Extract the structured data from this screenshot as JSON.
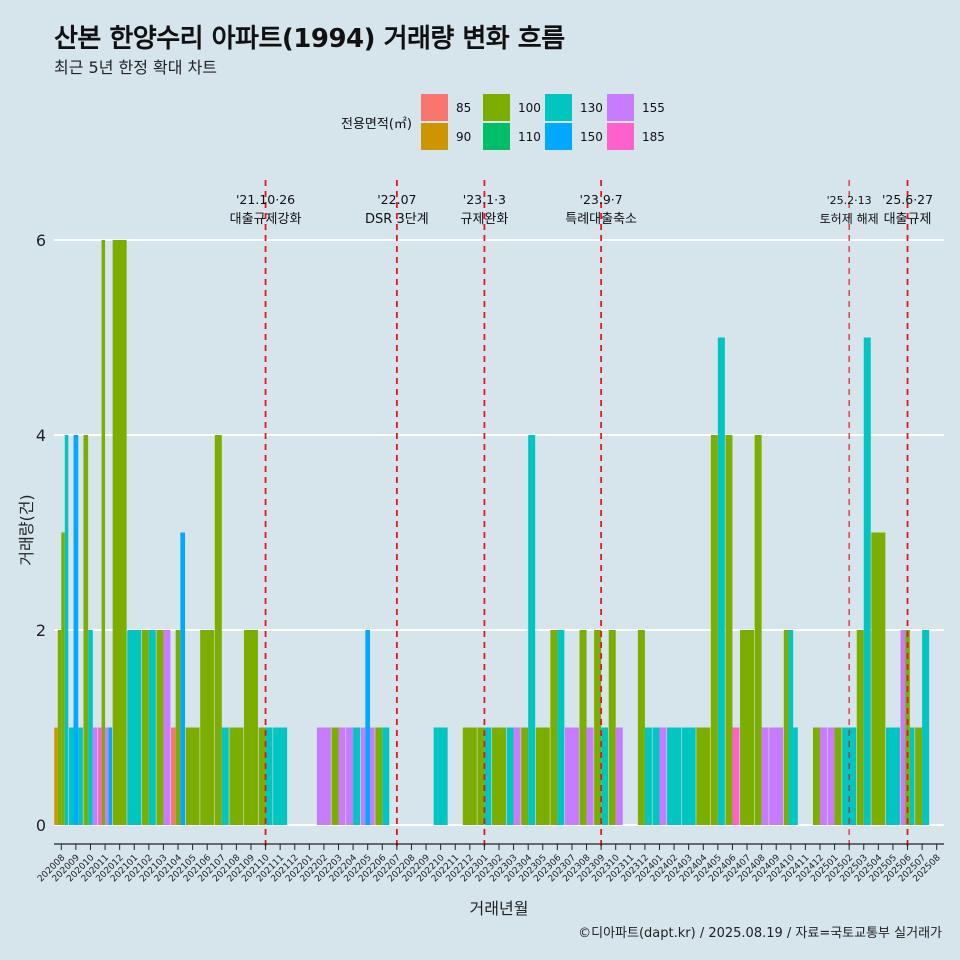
{
  "title": "산본 한양수리 아파트(1994) 거래량 변화 흐름",
  "subtitle": "최근 5년 한정 확대 차트",
  "caption": "©디아파트(dapt.kr) / 2025.08.19 / 자료=국토교통부 실거래가",
  "colors": {
    "background": "#d6e4ec",
    "grid": "#ffffff",
    "vline": "#e8141c",
    "85": "#f8766d",
    "90": "#cd9600",
    "100": "#7cae00",
    "110": "#00be67",
    "130": "#00c5c0",
    "150": "#00a9ff",
    "155": "#c77cff",
    "185": "#ff61cc"
  },
  "chart_data": {
    "type": "bar",
    "xlabel": "거래년월",
    "ylabel": "거래량(건)",
    "ylim": [
      0,
      6.4
    ],
    "yticks": [
      0,
      2,
      4,
      6
    ],
    "grid": true,
    "legend": {
      "title": "전용면적(㎡)",
      "position": "top",
      "keys": [
        "85",
        "90",
        "100",
        "110",
        "130",
        "150",
        "155",
        "185"
      ]
    },
    "categories": [
      "202008",
      "202009",
      "202010",
      "202011",
      "202012",
      "202101",
      "202102",
      "202103",
      "202104",
      "202105",
      "202106",
      "202107",
      "202108",
      "202109",
      "202110",
      "202111",
      "202112",
      "202201",
      "202202",
      "202203",
      "202204",
      "202205",
      "202206",
      "202207",
      "202208",
      "202209",
      "202210",
      "202211",
      "202212",
      "202301",
      "202302",
      "202303",
      "202304",
      "202305",
      "202306",
      "202307",
      "202308",
      "202309",
      "202310",
      "202311",
      "202312",
      "202401",
      "202402",
      "202403",
      "202404",
      "202405",
      "202406",
      "202407",
      "202408",
      "202409",
      "202410",
      "202411",
      "202412",
      "202501",
      "202502",
      "202503",
      "202504",
      "202505",
      "202506",
      "202507",
      "202508"
    ],
    "groups": [
      {
        "x": "202008",
        "bars": [
          {
            "area": "90",
            "value": 1
          },
          {
            "area": "100",
            "value": 2
          },
          {
            "area": "100",
            "value": 3
          },
          {
            "area": "130",
            "value": 4
          }
        ]
      },
      {
        "x": "202009",
        "bars": [
          {
            "area": "130",
            "value": 1
          },
          {
            "area": "150",
            "value": 4
          },
          {
            "area": "130",
            "value": 1
          }
        ]
      },
      {
        "x": "202010",
        "bars": [
          {
            "area": "100",
            "value": 4
          },
          {
            "area": "130",
            "value": 2
          },
          {
            "area": "155",
            "value": 1
          }
        ]
      },
      {
        "x": "202011",
        "bars": [
          {
            "area": "185",
            "value": 1
          },
          {
            "area": "100",
            "value": 6
          },
          {
            "area": "155",
            "value": 1
          },
          {
            "area": "150",
            "value": 1
          }
        ]
      },
      {
        "x": "202012",
        "bars": [
          {
            "area": "100",
            "value": 6
          }
        ]
      },
      {
        "x": "202101",
        "bars": [
          {
            "area": "130",
            "value": 2
          }
        ]
      },
      {
        "x": "202102",
        "bars": [
          {
            "area": "100",
            "value": 2
          },
          {
            "area": "130",
            "value": 2
          }
        ]
      },
      {
        "x": "202103",
        "bars": [
          {
            "area": "100",
            "value": 2
          },
          {
            "area": "155",
            "value": 2
          }
        ]
      },
      {
        "x": "202104",
        "bars": [
          {
            "area": "85",
            "value": 1
          },
          {
            "area": "100",
            "value": 2
          },
          {
            "area": "150",
            "value": 3
          }
        ]
      },
      {
        "x": "202105",
        "bars": [
          {
            "area": "100",
            "value": 1
          }
        ]
      },
      {
        "x": "202106",
        "bars": [
          {
            "area": "100",
            "value": 2
          }
        ]
      },
      {
        "x": "202107",
        "bars": [
          {
            "area": "100",
            "value": 4
          },
          {
            "area": "130",
            "value": 1
          }
        ]
      },
      {
        "x": "202108",
        "bars": [
          {
            "area": "100",
            "value": 1
          }
        ]
      },
      {
        "x": "202109",
        "bars": [
          {
            "area": "100",
            "value": 2
          }
        ]
      },
      {
        "x": "202110",
        "bars": [
          {
            "area": "100",
            "value": 1
          },
          {
            "area": "130",
            "value": 1
          }
        ]
      },
      {
        "x": "202111",
        "bars": [
          {
            "area": "130",
            "value": 1
          }
        ]
      },
      {
        "x": "202112",
        "bars": []
      },
      {
        "x": "202201",
        "bars": []
      },
      {
        "x": "202202",
        "bars": [
          {
            "area": "155",
            "value": 1
          }
        ]
      },
      {
        "x": "202203",
        "bars": [
          {
            "area": "100",
            "value": 1
          },
          {
            "area": "155",
            "value": 1
          }
        ]
      },
      {
        "x": "202204",
        "bars": [
          {
            "area": "155",
            "value": 1
          },
          {
            "area": "130",
            "value": 1
          }
        ]
      },
      {
        "x": "202205",
        "bars": [
          {
            "area": "155",
            "value": 1
          },
          {
            "area": "150",
            "value": 2
          },
          {
            "area": "155",
            "value": 1
          }
        ]
      },
      {
        "x": "202206",
        "bars": [
          {
            "area": "100",
            "value": 1
          },
          {
            "area": "130",
            "value": 1
          }
        ]
      },
      {
        "x": "202207",
        "bars": []
      },
      {
        "x": "202208",
        "bars": []
      },
      {
        "x": "202209",
        "bars": []
      },
      {
        "x": "202210",
        "bars": [
          {
            "area": "130",
            "value": 1
          }
        ]
      },
      {
        "x": "202211",
        "bars": []
      },
      {
        "x": "202212",
        "bars": [
          {
            "area": "100",
            "value": 1
          }
        ]
      },
      {
        "x": "202301",
        "bars": [
          {
            "area": "100",
            "value": 1
          },
          {
            "area": "130",
            "value": 1
          }
        ]
      },
      {
        "x": "202302",
        "bars": [
          {
            "area": "100",
            "value": 1
          }
        ]
      },
      {
        "x": "202303",
        "bars": [
          {
            "area": "130",
            "value": 1
          },
          {
            "area": "155",
            "value": 1
          }
        ]
      },
      {
        "x": "202304",
        "bars": [
          {
            "area": "100",
            "value": 1
          },
          {
            "area": "130",
            "value": 4
          }
        ]
      },
      {
        "x": "202305",
        "bars": [
          {
            "area": "100",
            "value": 1
          }
        ]
      },
      {
        "x": "202306",
        "bars": [
          {
            "area": "100",
            "value": 2
          },
          {
            "area": "130",
            "value": 2
          }
        ]
      },
      {
        "x": "202307",
        "bars": [
          {
            "area": "155",
            "value": 1
          }
        ]
      },
      {
        "x": "202308",
        "bars": [
          {
            "area": "100",
            "value": 2
          },
          {
            "area": "155",
            "value": 1
          }
        ]
      },
      {
        "x": "202309",
        "bars": [
          {
            "area": "100",
            "value": 2
          },
          {
            "area": "130",
            "value": 1
          }
        ]
      },
      {
        "x": "202310",
        "bars": [
          {
            "area": "100",
            "value": 2
          },
          {
            "area": "155",
            "value": 1
          }
        ]
      },
      {
        "x": "202311",
        "bars": []
      },
      {
        "x": "202312",
        "bars": [
          {
            "area": "100",
            "value": 2
          },
          {
            "area": "130",
            "value": 1
          }
        ]
      },
      {
        "x": "202401",
        "bars": [
          {
            "area": "130",
            "value": 1
          },
          {
            "area": "155",
            "value": 1
          }
        ]
      },
      {
        "x": "202402",
        "bars": [
          {
            "area": "130",
            "value": 1
          }
        ]
      },
      {
        "x": "202403",
        "bars": [
          {
            "area": "130",
            "value": 1
          }
        ]
      },
      {
        "x": "202404",
        "bars": [
          {
            "area": "100",
            "value": 1
          }
        ]
      },
      {
        "x": "202405",
        "bars": [
          {
            "area": "100",
            "value": 4
          },
          {
            "area": "130",
            "value": 5
          }
        ]
      },
      {
        "x": "202406",
        "bars": [
          {
            "area": "100",
            "value": 4
          },
          {
            "area": "185",
            "value": 1
          }
        ]
      },
      {
        "x": "202407",
        "bars": [
          {
            "area": "100",
            "value": 2
          }
        ]
      },
      {
        "x": "202408",
        "bars": [
          {
            "area": "100",
            "value": 4
          },
          {
            "area": "155",
            "value": 1
          }
        ]
      },
      {
        "x": "202409",
        "bars": [
          {
            "area": "155",
            "value": 1
          }
        ]
      },
      {
        "x": "202410",
        "bars": [
          {
            "area": "100",
            "value": 2
          },
          {
            "area": "130",
            "value": 2
          },
          {
            "area": "130",
            "value": 1
          }
        ]
      },
      {
        "x": "202411",
        "bars": []
      },
      {
        "x": "202412",
        "bars": [
          {
            "area": "100",
            "value": 1
          },
          {
            "area": "155",
            "value": 1
          }
        ]
      },
      {
        "x": "202501",
        "bars": [
          {
            "area": "155",
            "value": 1
          },
          {
            "area": "100",
            "value": 1
          }
        ]
      },
      {
        "x": "202502",
        "bars": [
          {
            "area": "130",
            "value": 1
          }
        ]
      },
      {
        "x": "202503",
        "bars": [
          {
            "area": "100",
            "value": 2
          },
          {
            "area": "130",
            "value": 5
          }
        ]
      },
      {
        "x": "202504",
        "bars": [
          {
            "area": "100",
            "value": 3
          }
        ]
      },
      {
        "x": "202505",
        "bars": [
          {
            "area": "130",
            "value": 1
          }
        ]
      },
      {
        "x": "202506",
        "bars": [
          {
            "area": "155",
            "value": 2
          },
          {
            "area": "100",
            "value": 2
          },
          {
            "area": "130",
            "value": 1
          }
        ]
      },
      {
        "x": "202507",
        "bars": [
          {
            "area": "100",
            "value": 1
          },
          {
            "area": "130",
            "value": 2
          }
        ]
      },
      {
        "x": "202508",
        "bars": []
      }
    ],
    "annotations": [
      {
        "x": "202110",
        "date": "'21.10·26",
        "label": "대출규제강화",
        "style": "dashed"
      },
      {
        "x": "202207",
        "date": "'22.07",
        "label": "DSR 3단계",
        "style": "dashed"
      },
      {
        "x": "202301",
        "date": "'23.1·3",
        "label": "규제완화",
        "style": "dashed"
      },
      {
        "x": "202309",
        "date": "'23.9·7",
        "label": "특례대출축소",
        "style": "dashed"
      },
      {
        "x": "202502",
        "date": "'25.2·13",
        "label": "토허제 해제",
        "style": "dashed-thin"
      },
      {
        "x": "202506",
        "date": "'25.6·27",
        "label": "대출규제",
        "style": "dashed"
      }
    ]
  }
}
